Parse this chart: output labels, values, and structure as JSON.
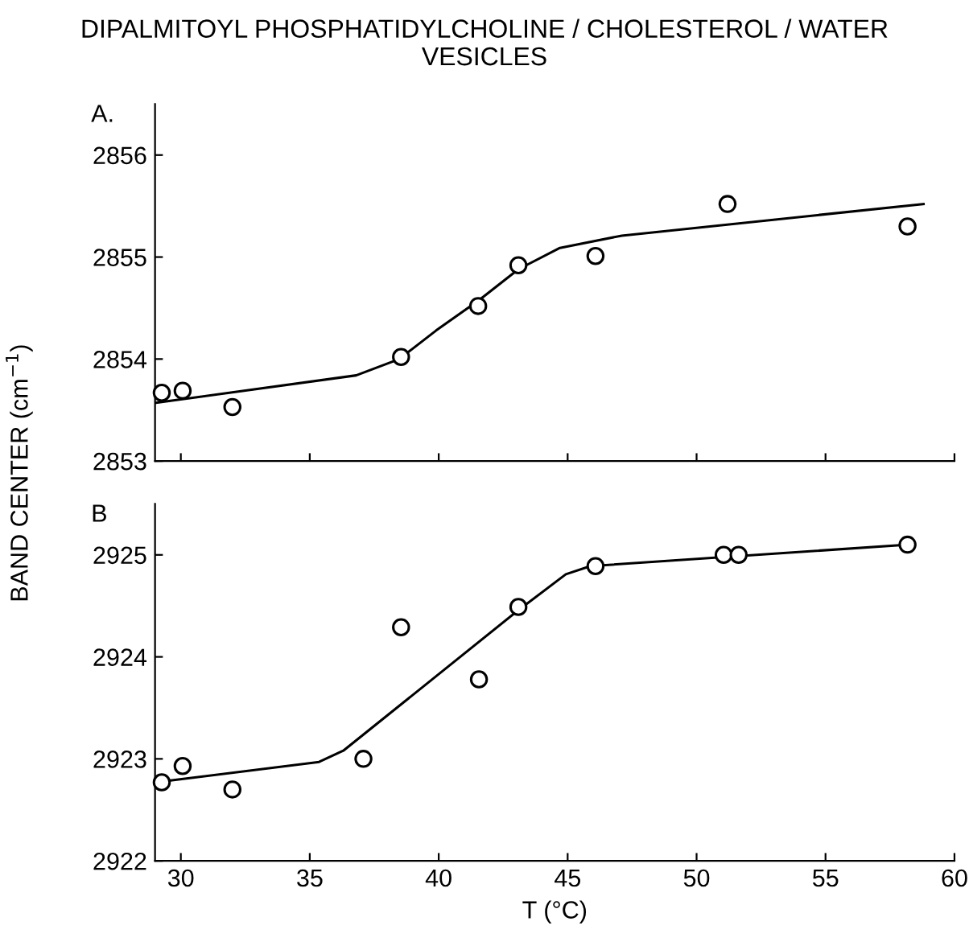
{
  "chart_data": [
    {
      "type": "scatter",
      "title": "DIPALMITOYL PHOSPHATIDYLCHOLINE / CHOLESTEROL / WATER\nVESICLES",
      "ylabel": "BAND CENTER (cm$^{−1}$)",
      "annotations": [
        "A."
      ],
      "xlim": [
        29,
        60
      ],
      "xticks": [
        {
          "value": 30,
          "label": null
        },
        {
          "value": 35,
          "label": null
        },
        {
          "value": 40,
          "label": null
        },
        {
          "value": 45,
          "label": null
        },
        {
          "value": 50,
          "label": null
        },
        {
          "value": 55,
          "label": null
        },
        {
          "value": 60,
          "label": null
        }
      ],
      "ylim": [
        2853,
        2856.5
      ],
      "yticks": [
        2853,
        2854,
        2855,
        2856
      ],
      "tick_labels": "y",
      "grid": false,
      "legend": false,
      "series": [
        {
          "color": "#000000",
          "marker": "circle",
          "x": [
            29.26,
            30.07,
            32.0,
            38.54,
            41.53,
            43.09,
            46.08,
            51.2,
            58.18
          ],
          "values": [
            2853.67,
            2853.69,
            2853.53,
            2854.02,
            2854.52,
            2854.92,
            2855.01,
            2855.52,
            2855.3
          ]
        },
        {
          "type": "line",
          "color": "#000000",
          "line_style": "solid",
          "x": [
            29.02,
            36.8,
            38.47,
            39.9,
            41.58,
            43.09,
            44.7,
            47.1,
            58.8
          ],
          "values": [
            2853.57,
            2853.84,
            2854.0,
            2854.28,
            2854.58,
            2854.88,
            2855.09,
            2855.21,
            2855.52
          ]
        }
      ]
    },
    {
      "type": "scatter",
      "xlabel": "T (°C)",
      "annotations": [
        "B"
      ],
      "xlim": [
        29,
        60
      ],
      "xticks": [
        30,
        35,
        40,
        45,
        50,
        55,
        60
      ],
      "ylim": [
        2922,
        2925.5
      ],
      "yticks": [
        2922,
        2923,
        2924,
        2925
      ],
      "grid": false,
      "legend": false,
      "series": [
        {
          "color": "#000000",
          "marker": "circle",
          "x": [
            29.26,
            30.07,
            32.0,
            37.08,
            38.54,
            41.56,
            43.09,
            46.08,
            51.05,
            51.63,
            58.18
          ],
          "values": [
            2922.77,
            2922.93,
            2922.7,
            2923.0,
            2924.29,
            2923.78,
            2924.49,
            2924.89,
            2925.0,
            2925.0,
            2925.1
          ]
        },
        {
          "type": "line",
          "color": "#000000",
          "line_style": "solid",
          "x": [
            29.02,
            35.36,
            36.3,
            39.9,
            43.0,
            44.93,
            45.88,
            58.18
          ],
          "values": [
            2922.77,
            2922.97,
            2923.08,
            2923.81,
            2924.44,
            2924.81,
            2924.89,
            2925.1
          ]
        }
      ]
    }
  ]
}
